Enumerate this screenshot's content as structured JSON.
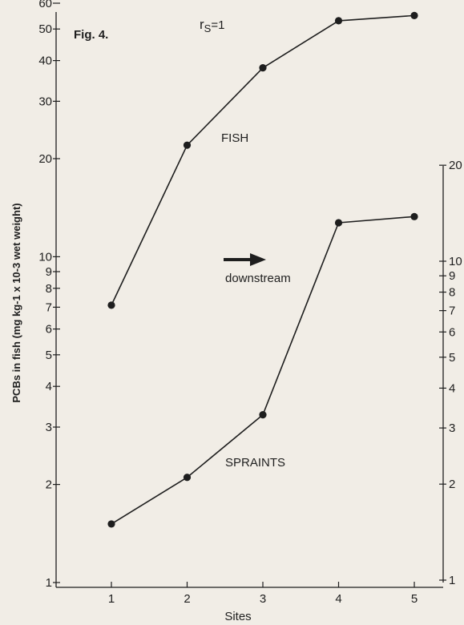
{
  "chart_data": {
    "type": "line",
    "figure_label": "Fig. 4.",
    "correlation_label": "r",
    "correlation_subscript": "S",
    "correlation_value": "=1",
    "xlabel": "Sites",
    "ylabel": "PCBs in fish (mg kg-1 x 10-3 wet weight)",
    "y_scale": "log",
    "grid": false,
    "categories": [
      "1",
      "2",
      "3",
      "4",
      "5"
    ],
    "x_tick_labels": [
      "1",
      "2",
      "3",
      "4",
      "5"
    ],
    "left_axis": {
      "ylim": [
        1,
        60
      ],
      "ticks": [
        1,
        2,
        3,
        4,
        5,
        6,
        7,
        8,
        9,
        10,
        20,
        30,
        40,
        50,
        60
      ],
      "tick_labels": [
        "1",
        "2",
        "3",
        "4",
        "5",
        "6",
        "7",
        "8",
        "9",
        "10",
        "20",
        "30",
        "40",
        "50",
        "60"
      ]
    },
    "right_axis": {
      "ylim": [
        1,
        20
      ],
      "ticks": [
        1,
        2,
        3,
        4,
        5,
        6,
        7,
        8,
        9,
        10,
        20
      ],
      "tick_labels": [
        "1",
        "2",
        "3",
        "4",
        "5",
        "6",
        "7",
        "8",
        "9",
        "10",
        "20"
      ]
    },
    "series": [
      {
        "name": "FISH",
        "axis": "left",
        "values": [
          7.1,
          22,
          38,
          53,
          55
        ]
      },
      {
        "name": "SPRAINTS",
        "axis": "right",
        "values": [
          1.5,
          2.1,
          3.3,
          13.2,
          13.8
        ]
      }
    ],
    "annotations": {
      "arrow_text": "downstream"
    },
    "colors": {
      "ink": "#1e1e1e",
      "paper": "#f1ede6"
    }
  }
}
